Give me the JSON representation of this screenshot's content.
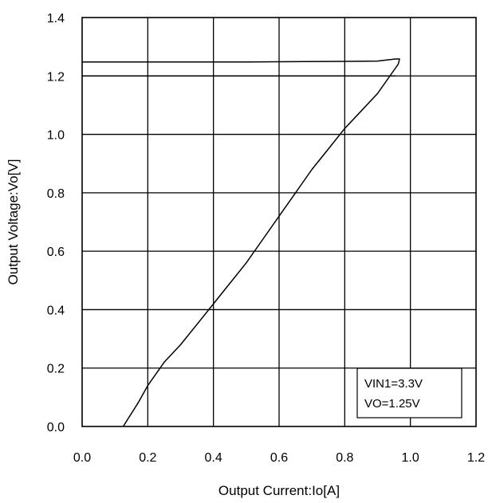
{
  "chart_data": {
    "type": "line",
    "title": "",
    "xlabel": "Output Current:Io[A]",
    "ylabel": "Output Voltage:Vo[V]",
    "xlim": [
      0.0,
      1.2
    ],
    "ylim": [
      0.0,
      1.4
    ],
    "x_ticks": [
      "0.0",
      "0.2",
      "0.4",
      "0.6",
      "0.8",
      "1.0",
      "1.2"
    ],
    "y_ticks": [
      "0.0",
      "0.2",
      "0.4",
      "0.6",
      "0.8",
      "1.0",
      "1.2",
      "1.4"
    ],
    "grid": true,
    "annotation": [
      "VIN1=3.3V",
      "VO=1.25V"
    ],
    "annotation_position": "bottom-right",
    "series": [
      {
        "x": [
          0.0,
          0.5,
          0.8,
          0.9,
          0.93,
          0.955,
          0.967,
          0.963,
          0.95,
          0.9,
          0.85,
          0.8,
          0.75,
          0.7,
          0.65,
          0.6,
          0.55,
          0.5,
          0.45,
          0.4,
          0.35,
          0.3,
          0.25,
          0.2,
          0.17,
          0.125
        ],
        "y": [
          1.248,
          1.248,
          1.25,
          1.251,
          1.255,
          1.258,
          1.258,
          1.24,
          1.22,
          1.14,
          1.08,
          1.02,
          0.95,
          0.88,
          0.8,
          0.72,
          0.64,
          0.56,
          0.49,
          0.42,
          0.35,
          0.28,
          0.22,
          0.14,
          0.08,
          0.0
        ]
      },
      {
        "x": [
          0.0,
          0.5,
          0.9,
          0.955
        ],
        "y": [
          1.2,
          1.2,
          1.2,
          1.2
        ]
      }
    ],
    "color": "#000000"
  }
}
